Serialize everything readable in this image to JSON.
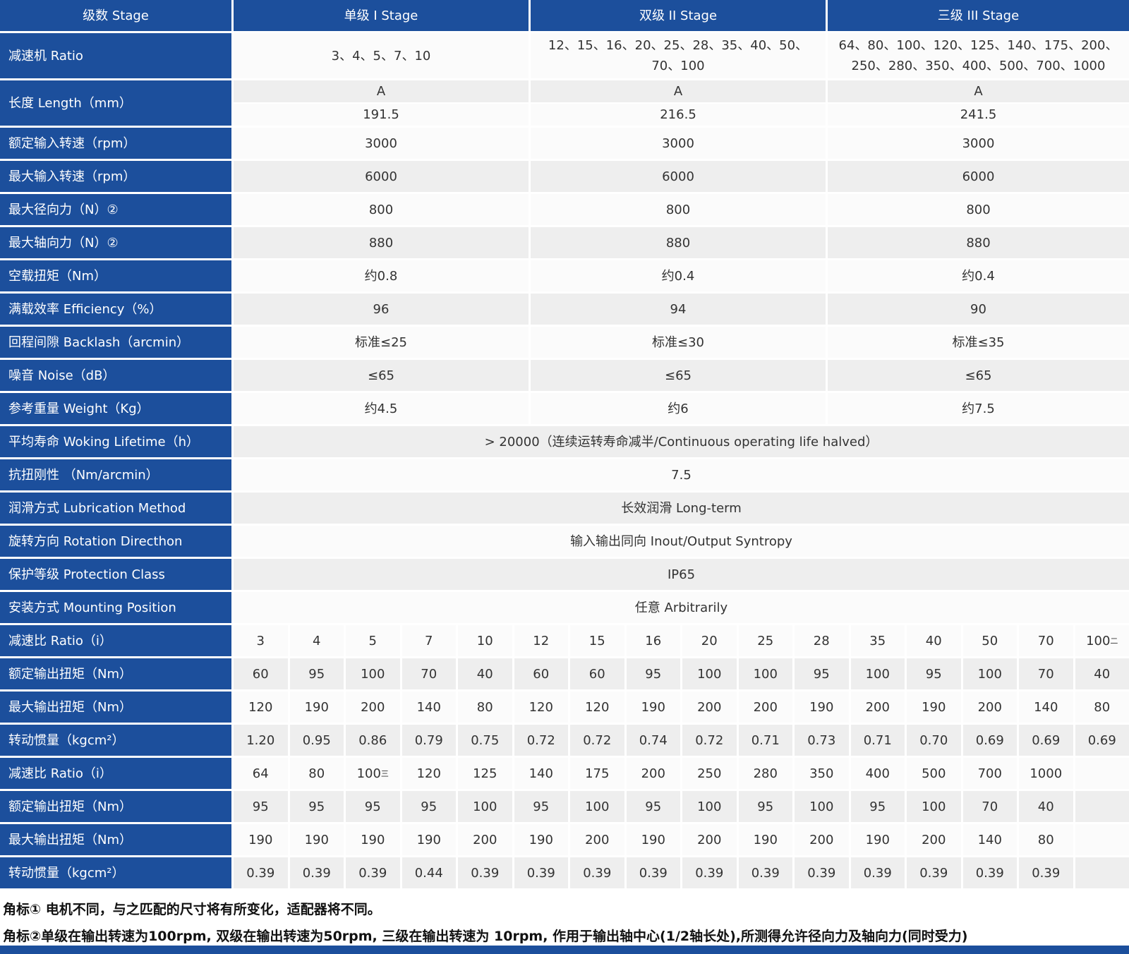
{
  "header": {
    "label": "级数 Stage",
    "stages": [
      "单级 I Stage",
      "双级 II Stage",
      "三级 III Stage"
    ]
  },
  "spec_rows": [
    {
      "label": "减速机 Ratio",
      "cells": [
        "3、4、5、7、10",
        "12、15、16、20、25、28、35、40、50、70、100",
        "64、80、100、120、125、140、175、200、250、280、350、400、500、700、1000"
      ]
    },
    {
      "label": "长度 Length（mm）",
      "sub_rows": [
        [
          "A",
          "A",
          "A"
        ],
        [
          "191.5",
          "216.5",
          "241.5"
        ]
      ]
    },
    {
      "label": "额定输入转速（rpm）",
      "cells": [
        "3000",
        "3000",
        "3000"
      ]
    },
    {
      "label": "最大输入转速（rpm）",
      "cells": [
        "6000",
        "6000",
        "6000"
      ]
    },
    {
      "label": "最大径向力（N）②",
      "cells": [
        "800",
        "800",
        "800"
      ]
    },
    {
      "label": "最大轴向力（N）②",
      "cells": [
        "880",
        "880",
        "880"
      ]
    },
    {
      "label": "空载扭矩（Nm）",
      "cells": [
        "约0.8",
        "约0.4",
        "约0.4"
      ]
    },
    {
      "label": "满载效率 Efficiency（%）",
      "cells": [
        "96",
        "94",
        "90"
      ]
    },
    {
      "label": "回程间隙 Backlash（arcmin）",
      "cells": [
        "标准≤25",
        "标准≤30",
        "标准≤35"
      ]
    },
    {
      "label": "噪音 Noise（dB）",
      "cells": [
        "≤65",
        "≤65",
        "≤65"
      ]
    },
    {
      "label": "参考重量 Weight（Kg）",
      "cells": [
        "约4.5",
        "约6",
        "约7.5"
      ]
    },
    {
      "label": "平均寿命 Woking Lifetime（h）",
      "span": "> 20000（连续运转寿命减半/Continuous operating life halved）"
    },
    {
      "label": "抗扭刚性 （Nm/arcmin）",
      "span": "7.5"
    },
    {
      "label": "润滑方式 Lubrication Method",
      "span": "长效润滑 Long-term"
    },
    {
      "label": "旋转方向 Rotation Directhon",
      "span": "输入输出同向 Inout/Output Syntropy"
    },
    {
      "label": "保护等级 Protection Class",
      "span": "IP65"
    },
    {
      "label": "安装方式 Mounting Position",
      "span": "任意 Arbitrarily"
    }
  ],
  "ratio_rows": [
    {
      "label": "减速比 Ratio（i）",
      "cells": [
        "3",
        "4",
        "5",
        "7",
        "10",
        "12",
        "15",
        "16",
        "20",
        "25",
        "28",
        "35",
        "40",
        "50",
        "70",
        {
          "text": "100",
          "sup": "二"
        }
      ]
    },
    {
      "label": "额定输出扭矩（Nm）",
      "cells": [
        "60",
        "95",
        "100",
        "70",
        "40",
        "60",
        "60",
        "95",
        "100",
        "100",
        "95",
        "100",
        "95",
        "100",
        "70",
        "40"
      ]
    },
    {
      "label": "最大输出扭矩（Nm）",
      "cells": [
        "120",
        "190",
        "200",
        "140",
        "80",
        "120",
        "120",
        "190",
        "200",
        "200",
        "190",
        "200",
        "190",
        "200",
        "140",
        "80"
      ]
    },
    {
      "label": "转动惯量（kgcm²）",
      "cells": [
        "1.20",
        "0.95",
        "0.86",
        "0.79",
        "0.75",
        "0.72",
        "0.72",
        "0.74",
        "0.72",
        "0.71",
        "0.73",
        "0.71",
        "0.70",
        "0.69",
        "0.69",
        "0.69"
      ]
    },
    {
      "label": "减速比 Ratio（i）",
      "cells": [
        "64",
        "80",
        {
          "text": "100",
          "sup": "三"
        },
        "120",
        "125",
        "140",
        "175",
        "200",
        "250",
        "280",
        "350",
        "400",
        "500",
        "700",
        "1000"
      ]
    },
    {
      "label": "额定输出扭矩（Nm）",
      "cells": [
        "95",
        "95",
        "95",
        "95",
        "100",
        "95",
        "100",
        "95",
        "100",
        "95",
        "100",
        "95",
        "100",
        "70",
        "40"
      ]
    },
    {
      "label": "最大输出扭矩（Nm）",
      "cells": [
        "190",
        "190",
        "190",
        "190",
        "200",
        "190",
        "200",
        "190",
        "200",
        "190",
        "200",
        "190",
        "200",
        "140",
        "80"
      ]
    },
    {
      "label": "转动惯量（kgcm²）",
      "cells": [
        "0.39",
        "0.39",
        "0.39",
        "0.44",
        "0.39",
        "0.39",
        "0.39",
        "0.39",
        "0.39",
        "0.39",
        "0.39",
        "0.39",
        "0.39",
        "0.39",
        "0.39"
      ]
    }
  ],
  "footnotes": [
    "角标① 电机不同，与之匹配的尺寸将有所变化，适配器将不同。",
    "角标②单级在输出转速为100rpm, 双级在输出转速为50rpm, 三级在输出转速为 10rpm, 作用于输出轴中心(1/2轴长处),所测得允许径向力及轴向力(同时受力)"
  ]
}
